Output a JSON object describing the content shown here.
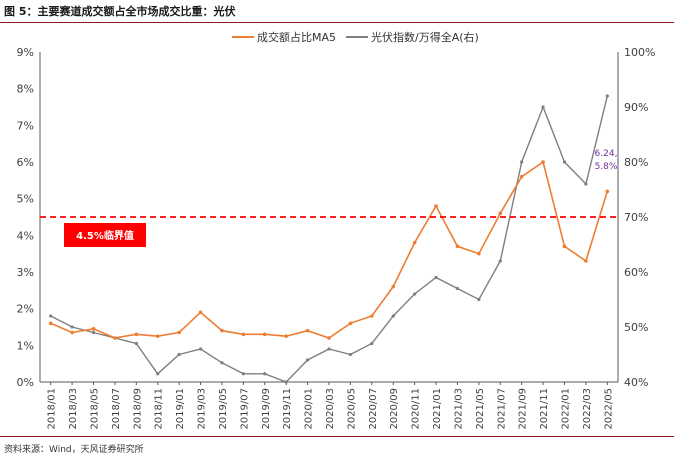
{
  "figure": {
    "title": "图 5：主要赛道成交额占全市场成交比重：光伏",
    "source": "资料来源：Wind，天风证券研究所"
  },
  "colors": {
    "series1": "#ed7d31",
    "series2": "#7f7f7f",
    "threshold": "#ff0000",
    "threshold_box": "#ff0000",
    "annotation": "#7030a0",
    "axis_text": "#404040"
  },
  "chart_data": {
    "type": "line",
    "x": [
      "2018/01",
      "2018/03",
      "2018/05",
      "2018/07",
      "2018/09",
      "2018/11",
      "2019/01",
      "2019/03",
      "2019/05",
      "2019/07",
      "2019/09",
      "2019/11",
      "2020/01",
      "2020/03",
      "2020/05",
      "2020/07",
      "2020/09",
      "2020/11",
      "2021/01",
      "2021/03",
      "2021/05",
      "2021/07",
      "2021/09",
      "2021/11",
      "2022/01",
      "2022/03",
      "2022/05"
    ],
    "series": [
      {
        "name": "成交额占比MA5",
        "axis": "left",
        "values": [
          1.6,
          1.35,
          1.45,
          1.2,
          1.3,
          1.25,
          1.35,
          1.9,
          1.4,
          1.3,
          1.3,
          1.25,
          1.4,
          1.2,
          1.6,
          1.8,
          2.6,
          3.8,
          4.8,
          3.7,
          3.5,
          4.6,
          5.6,
          6.0,
          3.7,
          3.3,
          5.2
        ]
      },
      {
        "name": "光伏指数/万得全A(右)",
        "axis": "right",
        "values": [
          52,
          50,
          49,
          48,
          47,
          41.5,
          45,
          46,
          43.5,
          41.5,
          41.5,
          40,
          44,
          46,
          45,
          47,
          52,
          56,
          59,
          57,
          55,
          62,
          80,
          90,
          80,
          76,
          92
        ]
      }
    ],
    "left_axis": {
      "ticks": [
        "0%",
        "1%",
        "2%",
        "3%",
        "4%",
        "5%",
        "6%",
        "7%",
        "8%",
        "9%"
      ],
      "ylim": [
        0,
        9
      ]
    },
    "right_axis": {
      "ticks": [
        "40%",
        "50%",
        "60%",
        "70%",
        "80%",
        "90%",
        "100%"
      ],
      "ylim": [
        40,
        100
      ]
    },
    "threshold": {
      "value": 4.5,
      "label": "4.5%临界值"
    },
    "annotation": {
      "lines": [
        "6.24,",
        "5.8%"
      ]
    }
  }
}
